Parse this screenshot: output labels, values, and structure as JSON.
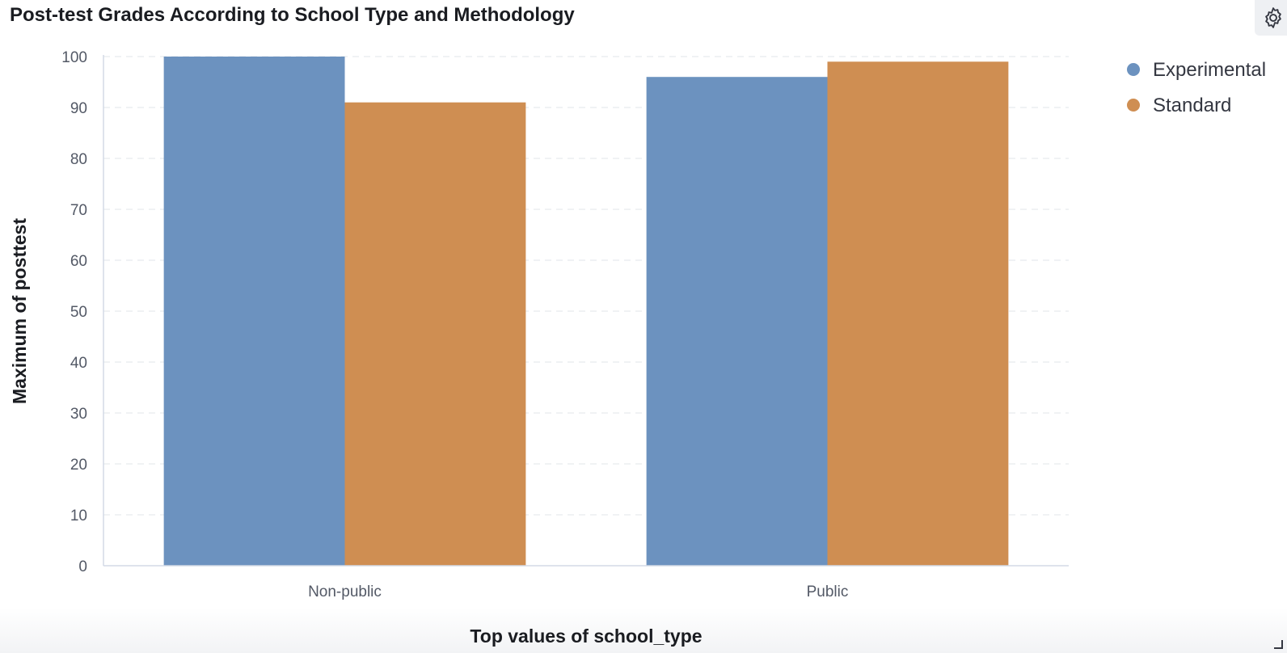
{
  "panel": {
    "title": "Post-test Grades According to School Type and Methodology",
    "settings_icon": "gear-icon",
    "resize_icon": "resize-corner-icon"
  },
  "chart_data": {
    "type": "bar",
    "title": "Post-test Grades According to School Type and Methodology",
    "categories": [
      "Non-public",
      "Public"
    ],
    "series": [
      {
        "name": "Experimental",
        "values": [
          100,
          96
        ],
        "color": "#6c92bf"
      },
      {
        "name": "Standard",
        "values": [
          91,
          99
        ],
        "color": "#cf8e52"
      }
    ],
    "xlabel": "Top values of school_type",
    "ylabel": "Maximum of posttest",
    "ylim": [
      0,
      100
    ],
    "yticks": [
      "0",
      "10",
      "20",
      "30",
      "40",
      "50",
      "60",
      "70",
      "80",
      "90",
      "100"
    ],
    "grid": true,
    "legend_position": "top-right"
  }
}
